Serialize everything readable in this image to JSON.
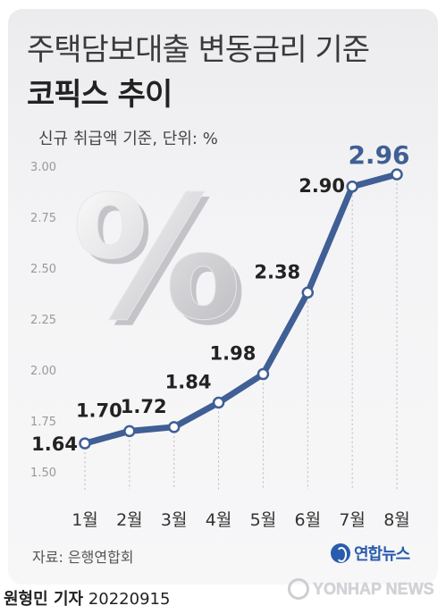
{
  "header": {
    "title_line1": "주택담보대출 변동금리 기준",
    "title_line2": "코픽스 추이",
    "subtitle": "신규 취급액 기준, 단위: %"
  },
  "footer": {
    "source": "자료: 은행연합회",
    "logo_text": "연합뉴스",
    "author": "원형민 기자",
    "date": "20220915",
    "watermark_text": "YONHAP NEWS"
  },
  "decor": {
    "percent_glyph": "%"
  },
  "colors": {
    "line": "#3f5f95",
    "marker_fill": "#ffffff",
    "last_label": "#3f5f95",
    "label": "#222222",
    "tick": "#999999",
    "logo": "#2a5cae"
  },
  "chart_data": {
    "type": "line",
    "categories": [
      "1월",
      "2월",
      "3월",
      "4월",
      "5월",
      "6월",
      "7월",
      "8월"
    ],
    "series": [
      {
        "values": [
          1.64,
          1.7,
          1.72,
          1.84,
          1.98,
          2.38,
          2.9,
          2.96
        ]
      }
    ],
    "data_labels": [
      "1.64",
      "1.70",
      "1.72",
      "1.84",
      "1.98",
      "2.38",
      "2.90",
      "2.96"
    ],
    "y_ticks": [
      "1.50",
      "1.75",
      "2.00",
      "2.25",
      "2.50",
      "2.75",
      "3.00"
    ],
    "ylim": [
      1.5,
      3.0
    ],
    "grid": "vertical dotted lines",
    "legend": "none"
  }
}
